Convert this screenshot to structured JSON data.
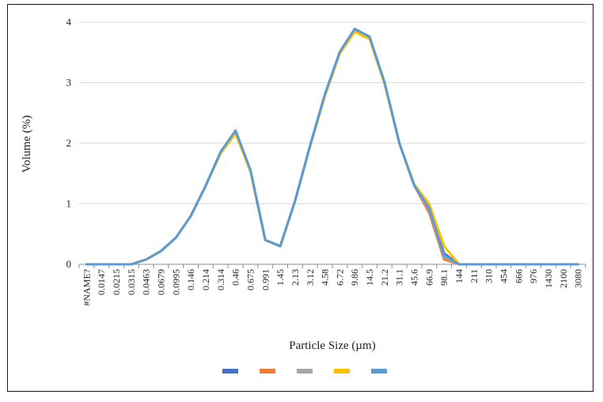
{
  "chart_data": {
    "type": "line",
    "title": "",
    "xlabel": "Particle Size (µm)",
    "ylabel": "Volume (%)",
    "ylim": [
      0,
      4
    ],
    "yticks": [
      "0",
      "1",
      "2",
      "3",
      "4"
    ],
    "grid": true,
    "legend": "bottom",
    "x": [
      "#NAME?",
      "0.0147",
      "0.0215",
      "0.0315",
      "0.0463",
      "0.0679",
      "0.0995",
      "0.146",
      "0.214",
      "0.314",
      "0.46",
      "0.675",
      "0.991",
      "1.45",
      "2.13",
      "3.12",
      "4.58",
      "6.72",
      "9.86",
      "14.5",
      "21.2",
      "31.1",
      "45.6",
      "66.9",
      "98.1",
      "144",
      "211",
      "310",
      "454",
      "666",
      "976",
      "1430",
      "2100",
      "3080"
    ],
    "series": [
      {
        "color": "#4472C4",
        "values": [
          0,
          0,
          0,
          0,
          0.08,
          0.22,
          0.44,
          0.8,
          1.3,
          1.85,
          2.2,
          1.55,
          0.4,
          0.3,
          1.05,
          1.95,
          2.8,
          3.5,
          3.88,
          3.75,
          3.0,
          2.0,
          1.3,
          0.95,
          0.18,
          0,
          0,
          0,
          0,
          0,
          0,
          0,
          0,
          0
        ]
      },
      {
        "color": "#ED7D31",
        "values": [
          0,
          0,
          0,
          0,
          0.08,
          0.22,
          0.44,
          0.8,
          1.3,
          1.84,
          2.18,
          1.54,
          0.4,
          0.3,
          1.05,
          1.95,
          2.8,
          3.5,
          3.87,
          3.74,
          3.0,
          2.0,
          1.3,
          0.85,
          0.08,
          0,
          0,
          0,
          0,
          0,
          0,
          0,
          0,
          0
        ]
      },
      {
        "color": "#A5A5A5",
        "values": [
          0,
          0,
          0,
          0,
          0.08,
          0.22,
          0.44,
          0.8,
          1.3,
          1.85,
          2.19,
          1.55,
          0.4,
          0.3,
          1.05,
          1.95,
          2.8,
          3.5,
          3.87,
          3.75,
          3.0,
          2.0,
          1.3,
          0.9,
          0.12,
          0,
          0,
          0,
          0,
          0,
          0,
          0,
          0,
          0
        ]
      },
      {
        "color": "#FFC000",
        "values": [
          0,
          0,
          0,
          0,
          0.08,
          0.22,
          0.44,
          0.8,
          1.3,
          1.83,
          2.16,
          1.53,
          0.4,
          0.3,
          1.05,
          1.94,
          2.78,
          3.48,
          3.84,
          3.72,
          2.98,
          2.0,
          1.32,
          1.0,
          0.3,
          0,
          0,
          0,
          0,
          0,
          0,
          0,
          0,
          0
        ]
      },
      {
        "color": "#5B9BD5",
        "values": [
          0,
          0,
          0,
          0,
          0.08,
          0.22,
          0.44,
          0.8,
          1.3,
          1.86,
          2.21,
          1.56,
          0.4,
          0.3,
          1.05,
          1.96,
          2.81,
          3.51,
          3.89,
          3.76,
          3.01,
          2.0,
          1.3,
          0.93,
          0.15,
          0,
          0,
          0,
          0,
          0,
          0,
          0,
          0,
          0
        ]
      }
    ]
  }
}
